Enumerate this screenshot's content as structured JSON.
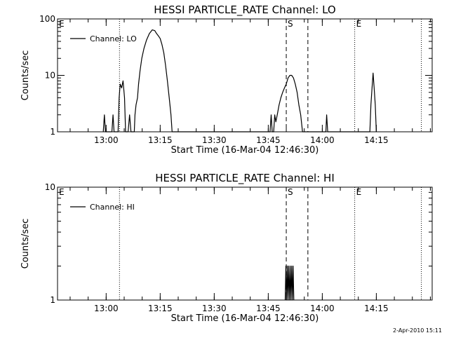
{
  "timestamp": "2-Apr-2010 15:11",
  "chart_data": [
    {
      "type": "line",
      "title": "HESSI PARTICLE_RATE Channel: LO",
      "ylabel": "Counts/sec",
      "xlabel": "Start Time (16-Mar-04 12:46:30)",
      "x_unit": "minutes since 12:46:30",
      "xlim": [
        0,
        104
      ],
      "ylim": [
        1,
        100
      ],
      "yscale": "log",
      "yticks": [
        1,
        10,
        100
      ],
      "ytick_labels": [
        "1",
        "10",
        "100"
      ],
      "xticks": [
        13.5,
        28.5,
        43.5,
        58.5,
        73.5,
        88.5
      ],
      "xtick_labels": [
        "13:00",
        "13:15",
        "13:30",
        "13:45",
        "14:00",
        "14:15"
      ],
      "legend": {
        "label": "Channel: LO",
        "position": "top-left"
      },
      "markers": [
        {
          "label": "E",
          "x": 0,
          "style": "dotted"
        },
        {
          "label": "",
          "x": 17.2,
          "style": "dotted"
        },
        {
          "label": "S",
          "x": 63.5,
          "style": "dashed"
        },
        {
          "label": "",
          "x": 69.5,
          "style": "dashed"
        },
        {
          "label": "E",
          "x": 82.5,
          "style": "dotted"
        },
        {
          "label": "",
          "x": 101,
          "style": "dotted"
        }
      ],
      "series": [
        {
          "name": "Channel: LO",
          "points": [
            [
              12.7,
              1
            ],
            [
              13.0,
              2
            ],
            [
              13.3,
              1
            ],
            [
              15.1,
              1
            ],
            [
              15.4,
              2
            ],
            [
              15.7,
              1
            ],
            [
              16.8,
              1
            ],
            [
              17.1,
              4
            ],
            [
              17.4,
              7
            ],
            [
              17.8,
              6
            ],
            [
              18.2,
              8
            ],
            [
              18.6,
              4
            ],
            [
              18.9,
              1
            ],
            [
              19.6,
              1
            ],
            [
              20.0,
              2
            ],
            [
              20.4,
              1
            ],
            [
              21.3,
              1
            ],
            [
              21.5,
              2
            ],
            [
              21.8,
              3
            ],
            [
              22.2,
              4
            ],
            [
              22.5,
              7
            ],
            [
              22.9,
              12
            ],
            [
              23.4,
              20
            ],
            [
              24.0,
              30
            ],
            [
              24.7,
              42
            ],
            [
              25.5,
              55
            ],
            [
              26.3,
              64
            ],
            [
              27.0,
              62
            ],
            [
              27.5,
              55
            ],
            [
              28.0,
              50
            ],
            [
              28.5,
              45
            ],
            [
              29.0,
              35
            ],
            [
              29.5,
              25
            ],
            [
              30.0,
              15
            ],
            [
              30.5,
              8
            ],
            [
              31.0,
              4
            ],
            [
              31.5,
              2
            ],
            [
              31.8,
              1
            ],
            [
              59.0,
              1
            ],
            [
              59.3,
              2
            ],
            [
              59.6,
              1
            ],
            [
              60.0,
              1
            ],
            [
              60.3,
              2
            ],
            [
              60.6,
              1.5
            ],
            [
              61.0,
              2
            ],
            [
              61.5,
              3
            ],
            [
              62.0,
              4
            ],
            [
              62.5,
              5
            ],
            [
              63.0,
              6
            ],
            [
              63.5,
              7
            ],
            [
              64.0,
              9
            ],
            [
              64.5,
              10
            ],
            [
              65.0,
              10
            ],
            [
              65.5,
              9
            ],
            [
              66.0,
              7
            ],
            [
              66.5,
              5
            ],
            [
              67.0,
              3
            ],
            [
              67.5,
              2
            ],
            [
              68.0,
              1
            ],
            [
              74.5,
              1
            ],
            [
              74.7,
              2
            ],
            [
              75.0,
              1
            ],
            [
              86.7,
              1
            ],
            [
              87.0,
              3
            ],
            [
              87.3,
              6
            ],
            [
              87.6,
              11
            ],
            [
              87.9,
              6
            ],
            [
              88.2,
              3
            ],
            [
              88.5,
              1
            ]
          ]
        }
      ]
    },
    {
      "type": "line",
      "title": "HESSI PARTICLE_RATE Channel: HI",
      "ylabel": "Counts/sec",
      "xlabel": "Start Time (16-Mar-04 12:46:30)",
      "x_unit": "minutes since 12:46:30",
      "xlim": [
        0,
        104
      ],
      "ylim": [
        1,
        10
      ],
      "yscale": "log",
      "yticks": [
        1,
        10
      ],
      "ytick_labels": [
        "1",
        "10"
      ],
      "xticks": [
        13.5,
        28.5,
        43.5,
        58.5,
        73.5,
        88.5
      ],
      "xtick_labels": [
        "13:00",
        "13:15",
        "13:30",
        "13:45",
        "14:00",
        "14:15"
      ],
      "legend": {
        "label": "Channel: HI",
        "position": "top-left"
      },
      "markers": [
        {
          "label": "E",
          "x": 0,
          "style": "dotted"
        },
        {
          "label": "",
          "x": 17.2,
          "style": "dotted"
        },
        {
          "label": "S",
          "x": 63.5,
          "style": "dashed"
        },
        {
          "label": "",
          "x": 69.5,
          "style": "dashed"
        },
        {
          "label": "E",
          "x": 82.5,
          "style": "dotted"
        },
        {
          "label": "",
          "x": 101,
          "style": "dotted"
        }
      ],
      "series": [
        {
          "name": "Channel: HI",
          "points": [
            [
              63.2,
              1
            ],
            [
              63.4,
              2
            ],
            [
              63.6,
              1
            ],
            [
              63.8,
              2
            ],
            [
              64.0,
              1
            ],
            [
              64.2,
              2
            ],
            [
              64.4,
              1
            ],
            [
              64.6,
              2
            ],
            [
              64.8,
              1
            ],
            [
              65.0,
              2
            ],
            [
              65.2,
              1
            ],
            [
              65.4,
              2
            ],
            [
              65.6,
              1
            ]
          ]
        }
      ]
    }
  ]
}
